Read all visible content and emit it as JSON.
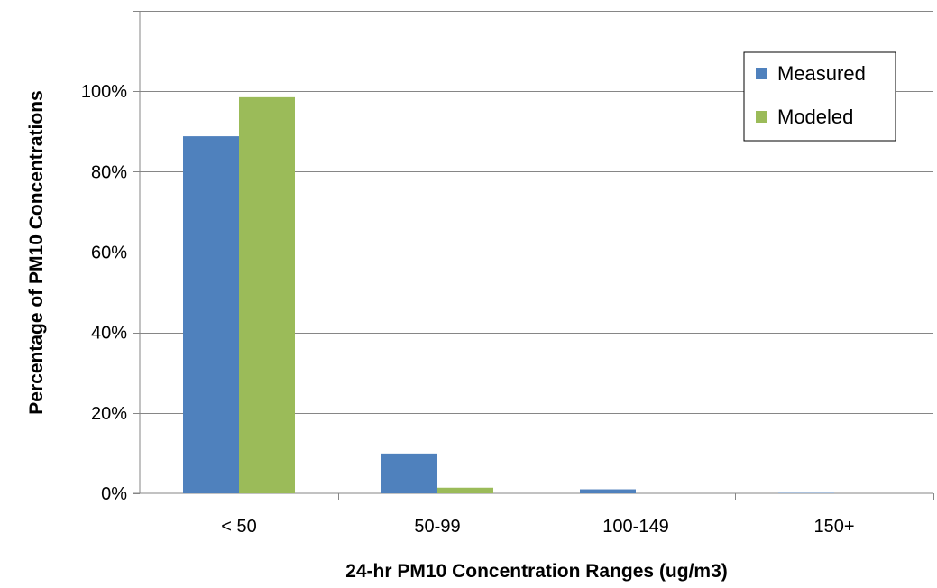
{
  "chart_data": {
    "type": "bar",
    "categories": [
      "< 50",
      "50-99",
      "100-149",
      "150+"
    ],
    "series": [
      {
        "name": "Measured",
        "color": "#4F81BD",
        "values": [
          0.888,
          0.099,
          0.01,
          0.001
        ]
      },
      {
        "name": "Modeled",
        "color": "#9BBB59",
        "values": [
          0.985,
          0.014,
          0.0,
          0.0
        ]
      }
    ],
    "xlabel": "24-hr PM10 Concentration Ranges (ug/m3)",
    "ylabel": "Percentage of PM10 Concentrations",
    "ylim": [
      0,
      1.2
    ],
    "yticks": [
      "0%",
      "20%",
      "40%",
      "60%",
      "80%",
      "100%"
    ],
    "grid": true,
    "legend_position": "top-right"
  }
}
